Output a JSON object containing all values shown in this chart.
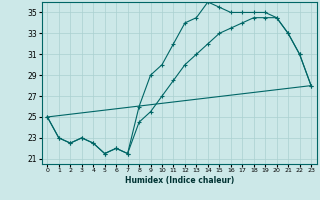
{
  "xlabel": "Humidex (Indice chaleur)",
  "background_color": "#cce8e8",
  "grid_color": "#aad0d0",
  "line_color": "#006666",
  "xlim": [
    -0.5,
    23.5
  ],
  "ylim": [
    20.5,
    36.0
  ],
  "yticks": [
    21,
    23,
    25,
    27,
    29,
    31,
    33,
    35
  ],
  "xticks": [
    0,
    1,
    2,
    3,
    4,
    5,
    6,
    7,
    8,
    9,
    10,
    11,
    12,
    13,
    14,
    15,
    16,
    17,
    18,
    19,
    20,
    21,
    22,
    23
  ],
  "series": [
    {
      "x": [
        0,
        1,
        2,
        3,
        4,
        5,
        6,
        7,
        8,
        9,
        10,
        11,
        12,
        13,
        14,
        15,
        16,
        17,
        18,
        19,
        20,
        21,
        22,
        23
      ],
      "y": [
        25,
        23,
        22.5,
        23,
        22.5,
        21.5,
        22,
        21.5,
        26,
        29,
        30,
        32,
        34,
        34.5,
        36,
        35.5,
        35,
        35,
        35,
        35,
        34.5,
        33,
        31,
        28
      ]
    },
    {
      "x": [
        0,
        1,
        2,
        3,
        4,
        5,
        6,
        7,
        8,
        9,
        10,
        11,
        12,
        13,
        14,
        15,
        16,
        17,
        18,
        19,
        20,
        21,
        22,
        23
      ],
      "y": [
        25,
        23,
        22.5,
        23,
        22.5,
        21.5,
        22,
        21.5,
        24.5,
        25.5,
        27,
        28.5,
        30,
        31,
        32,
        33,
        33.5,
        34,
        34.5,
        34.5,
        34.5,
        33,
        31,
        28
      ]
    },
    {
      "x": [
        0,
        23
      ],
      "y": [
        25,
        28
      ]
    }
  ]
}
